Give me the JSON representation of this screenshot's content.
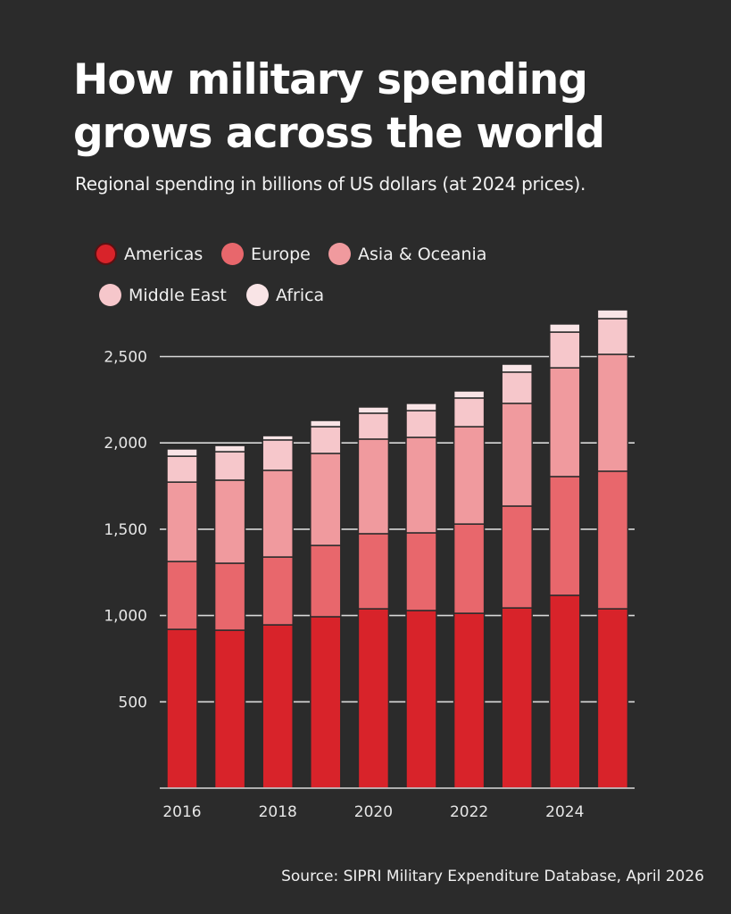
{
  "header": {
    "title": "How military spending grows across the world",
    "subtitle": "Regional spending in billions of US dollars (at 2024 prices)."
  },
  "footer": {
    "source": "Source: SIPRI Military Expenditure Database, April 2026"
  },
  "colors": {
    "background": "#2b2b2b",
    "Americas": "#d8232a",
    "Europe": "#e8676c",
    "Asia & Oceania": "#f09a9e",
    "Middle East": "#f6c7cb",
    "Africa": "#f9e4e6",
    "gridline": "#d9d9d9"
  },
  "chart_data": {
    "type": "bar",
    "stacked": true,
    "title": "How military spending grows across the world",
    "subtitle": "Regional spending in billions of US dollars (at 2024 prices).",
    "xlabel": "",
    "ylabel": "",
    "categories": [
      "2016",
      "2017",
      "2018",
      "2019",
      "2020",
      "2021",
      "2022",
      "2023",
      "2024",
      "2025"
    ],
    "x_tick_labels": [
      "2016",
      "2018",
      "2020",
      "2022",
      "2024"
    ],
    "y_ticks": [
      500,
      1000,
      1500,
      2000,
      2500
    ],
    "y_tick_labels": [
      "500",
      "1,000",
      "1,500",
      "2,000",
      "2,500"
    ],
    "ylim": [
      0,
      2800
    ],
    "grid": true,
    "legend_position": "top-left",
    "series": [
      {
        "name": "Americas",
        "values": [
          920,
          915,
          946,
          993,
          1039,
          1029,
          1013,
          1044,
          1117,
          1039
        ]
      },
      {
        "name": "Europe",
        "values": [
          393,
          388,
          393,
          413,
          435,
          450,
          517,
          590,
          688,
          797
        ]
      },
      {
        "name": "Asia & Oceania",
        "values": [
          460,
          481,
          502,
          533,
          548,
          553,
          564,
          595,
          630,
          677
        ]
      },
      {
        "name": "Middle East",
        "values": [
          150,
          165,
          176,
          155,
          150,
          155,
          166,
          181,
          207,
          207
        ]
      },
      {
        "name": "Africa",
        "values": [
          42,
          36,
          25,
          36,
          36,
          42,
          41,
          46,
          47,
          51
        ]
      }
    ]
  }
}
